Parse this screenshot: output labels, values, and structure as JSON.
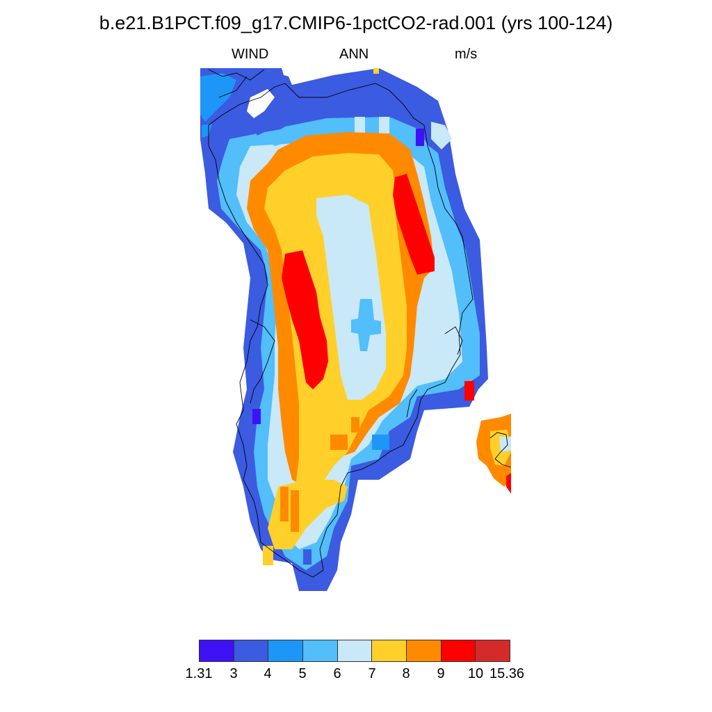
{
  "header": {
    "title": "b.e21.B1PCT.f09_g17.CMIP6-1pctCO2-rad.001 (yrs 100-124)",
    "left_label": "WIND",
    "center_label": "ANN",
    "right_label": "m/s"
  },
  "colorbar": {
    "colors": [
      "#3f12f5",
      "#3b5be0",
      "#1e96f7",
      "#52befa",
      "#c9e8f8",
      "#ffd02a",
      "#ff8a00",
      "#ff0000",
      "#d42a2a"
    ],
    "tick_labels": [
      "1.31",
      "3",
      "4",
      "5",
      "6",
      "7",
      "8",
      "9",
      "10",
      "15.36"
    ]
  }
}
